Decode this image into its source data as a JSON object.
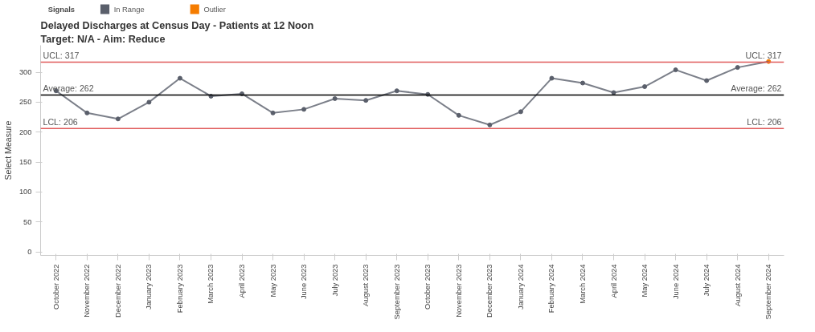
{
  "chart_data": {
    "type": "line",
    "title": "Delayed Discharges at Census Day - Patients at 12 Noon",
    "subtitle": "Target: N/A - Aim: Reduce",
    "ylabel": "Select Measure",
    "legend_title": "Signals",
    "legend": "top left",
    "categories": [
      "October 2022",
      "November 2022",
      "December 2022",
      "January 2023",
      "February 2023",
      "March 2023",
      "April 2023",
      "May 2023",
      "June 2023",
      "July 2023",
      "August 2023",
      "September 2023",
      "October 2023",
      "November 2023",
      "December 2023",
      "January 2024",
      "February 2024",
      "March 2024",
      "April 2024",
      "May 2024",
      "June 2024",
      "July 2024",
      "August 2024",
      "September 2024"
    ],
    "series": [
      {
        "name": "In Range",
        "color": "#5a5f6b",
        "values": [
          269,
          232,
          222,
          250,
          290,
          260,
          264,
          232,
          238,
          256,
          253,
          269,
          263,
          228,
          212,
          234,
          290,
          282,
          266,
          276,
          304,
          286,
          308,
          null
        ]
      },
      {
        "name": "Outlier",
        "type": "scatter",
        "color": "#f57c00",
        "values": [
          null,
          null,
          null,
          null,
          null,
          null,
          null,
          null,
          null,
          null,
          null,
          null,
          null,
          null,
          null,
          null,
          null,
          null,
          null,
          null,
          null,
          null,
          null,
          318
        ]
      }
    ],
    "ylim": [
      -6,
      345
    ],
    "yticks": [
      0,
      50,
      100,
      150,
      200,
      250,
      300
    ],
    "grid": false,
    "marker": "circle",
    "ref_lines": [
      {
        "axis": "y",
        "value": 317,
        "label": "UCL: 317",
        "color": "#e05a5a"
      },
      {
        "axis": "y",
        "value": 262,
        "label": "Average: 262",
        "color": "#000000"
      },
      {
        "axis": "y",
        "value": 206,
        "label": "LCL: 206",
        "color": "#e05a5a"
      }
    ]
  }
}
